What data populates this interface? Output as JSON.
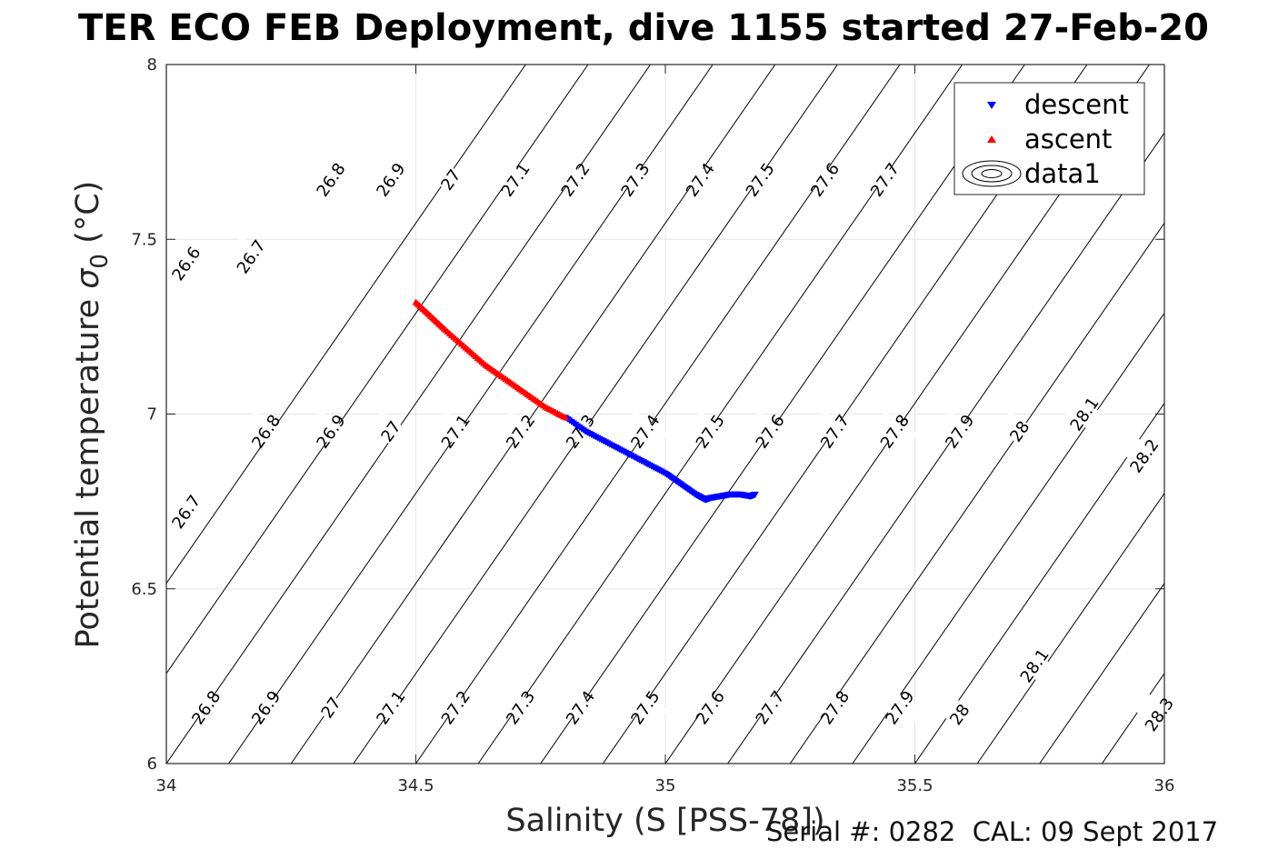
{
  "chart_data": {
    "type": "scatter",
    "title": "TER ECO FEB Deployment, dive 1155 started 27-Feb-20",
    "xlabel": "Salinity (S [PSS-78])",
    "ylabel_text": "Potential temperature ",
    "ylabel_sym": "σ",
    "ylabel_sub": "0",
    "ylabel_unit": " (°C)",
    "xlim": [
      34,
      36
    ],
    "ylim": [
      6,
      8
    ],
    "xticks": [
      34,
      34.5,
      35,
      35.5,
      36
    ],
    "xtick_labels": [
      "34",
      "34.5",
      "35",
      "35.5",
      "36"
    ],
    "yticks": [
      6,
      6.5,
      7,
      7.5,
      8
    ],
    "ytick_labels": [
      "6",
      "6.5",
      "7",
      "7.5",
      "8"
    ],
    "grid": true,
    "legend_position": "top-right",
    "series": [
      {
        "name": "descent",
        "marker": "triangle-down",
        "color": "#0000ff",
        "x": [
          34.8,
          34.84,
          34.88,
          34.92,
          34.96,
          35.0,
          35.03,
          35.06,
          35.08,
          35.09,
          35.11,
          35.13,
          35.15,
          35.17,
          35.18
        ],
        "y": [
          6.99,
          6.95,
          6.92,
          6.89,
          6.86,
          6.83,
          6.8,
          6.77,
          6.755,
          6.76,
          6.765,
          6.77,
          6.77,
          6.765,
          6.77
        ]
      },
      {
        "name": "ascent",
        "marker": "triangle-up",
        "color": "#ff0000",
        "x": [
          34.5,
          34.53,
          34.56,
          34.6,
          34.64,
          34.68,
          34.72,
          34.76,
          34.8
        ],
        "y": [
          7.32,
          7.28,
          7.24,
          7.19,
          7.14,
          7.1,
          7.06,
          7.02,
          6.99
        ]
      }
    ],
    "contour_legend_label": "data1",
    "isopycnal_labels": [
      {
        "v": "26.6",
        "s": 34.04,
        "t": 7.43
      },
      {
        "v": "26.7",
        "s": 34.17,
        "t": 7.45
      },
      {
        "v": "26.8",
        "s": 34.33,
        "t": 7.67
      },
      {
        "v": "26.9",
        "s": 34.45,
        "t": 7.67
      },
      {
        "v": "27",
        "s": 34.57,
        "t": 7.67
      },
      {
        "v": "27.1",
        "s": 34.7,
        "t": 7.67
      },
      {
        "v": "27.2",
        "s": 34.82,
        "t": 7.67
      },
      {
        "v": "27.3",
        "s": 34.94,
        "t": 7.67
      },
      {
        "v": "27.4",
        "s": 35.07,
        "t": 7.67
      },
      {
        "v": "27.5",
        "s": 35.19,
        "t": 7.67
      },
      {
        "v": "27.6",
        "s": 35.32,
        "t": 7.67
      },
      {
        "v": "27.7",
        "s": 35.44,
        "t": 7.67
      },
      {
        "v": "26.8",
        "s": 34.2,
        "t": 6.95
      },
      {
        "v": "26.9",
        "s": 34.33,
        "t": 6.95
      },
      {
        "v": "27",
        "s": 34.45,
        "t": 6.95
      },
      {
        "v": "27.1",
        "s": 34.58,
        "t": 6.95
      },
      {
        "v": "27.2",
        "s": 34.71,
        "t": 6.95
      },
      {
        "v": "27.3",
        "s": 34.83,
        "t": 6.95
      },
      {
        "v": "27.4",
        "s": 34.96,
        "t": 6.95
      },
      {
        "v": "27.5",
        "s": 35.09,
        "t": 6.95
      },
      {
        "v": "27.6",
        "s": 35.21,
        "t": 6.95
      },
      {
        "v": "27.7",
        "s": 35.34,
        "t": 6.95
      },
      {
        "v": "27.8",
        "s": 35.46,
        "t": 6.95
      },
      {
        "v": "27.9",
        "s": 35.59,
        "t": 6.95
      },
      {
        "v": "28",
        "s": 35.71,
        "t": 6.95
      },
      {
        "v": "28.1",
        "s": 35.84,
        "t": 7.0
      },
      {
        "v": "28.2",
        "s": 35.96,
        "t": 6.88
      },
      {
        "v": "26.7",
        "s": 34.04,
        "t": 6.72
      },
      {
        "v": "26.8",
        "s": 34.08,
        "t": 6.16
      },
      {
        "v": "26.9",
        "s": 34.2,
        "t": 6.16
      },
      {
        "v": "27",
        "s": 34.33,
        "t": 6.16
      },
      {
        "v": "27.1",
        "s": 34.45,
        "t": 6.16
      },
      {
        "v": "27.2",
        "s": 34.58,
        "t": 6.16
      },
      {
        "v": "27.3",
        "s": 34.71,
        "t": 6.16
      },
      {
        "v": "27.4",
        "s": 34.83,
        "t": 6.16
      },
      {
        "v": "27.5",
        "s": 34.96,
        "t": 6.16
      },
      {
        "v": "27.6",
        "s": 35.09,
        "t": 6.16
      },
      {
        "v": "27.7",
        "s": 35.21,
        "t": 6.16
      },
      {
        "v": "27.8",
        "s": 35.34,
        "t": 6.16
      },
      {
        "v": "27.9",
        "s": 35.47,
        "t": 6.16
      },
      {
        "v": "28",
        "s": 35.59,
        "t": 6.14
      },
      {
        "v": "28.1",
        "s": 35.74,
        "t": 6.28
      },
      {
        "v": "28.3",
        "s": 35.99,
        "t": 6.14
      }
    ]
  },
  "footer": {
    "serial": "Serial #: 0282  CAL: 09 Sept 2017"
  }
}
